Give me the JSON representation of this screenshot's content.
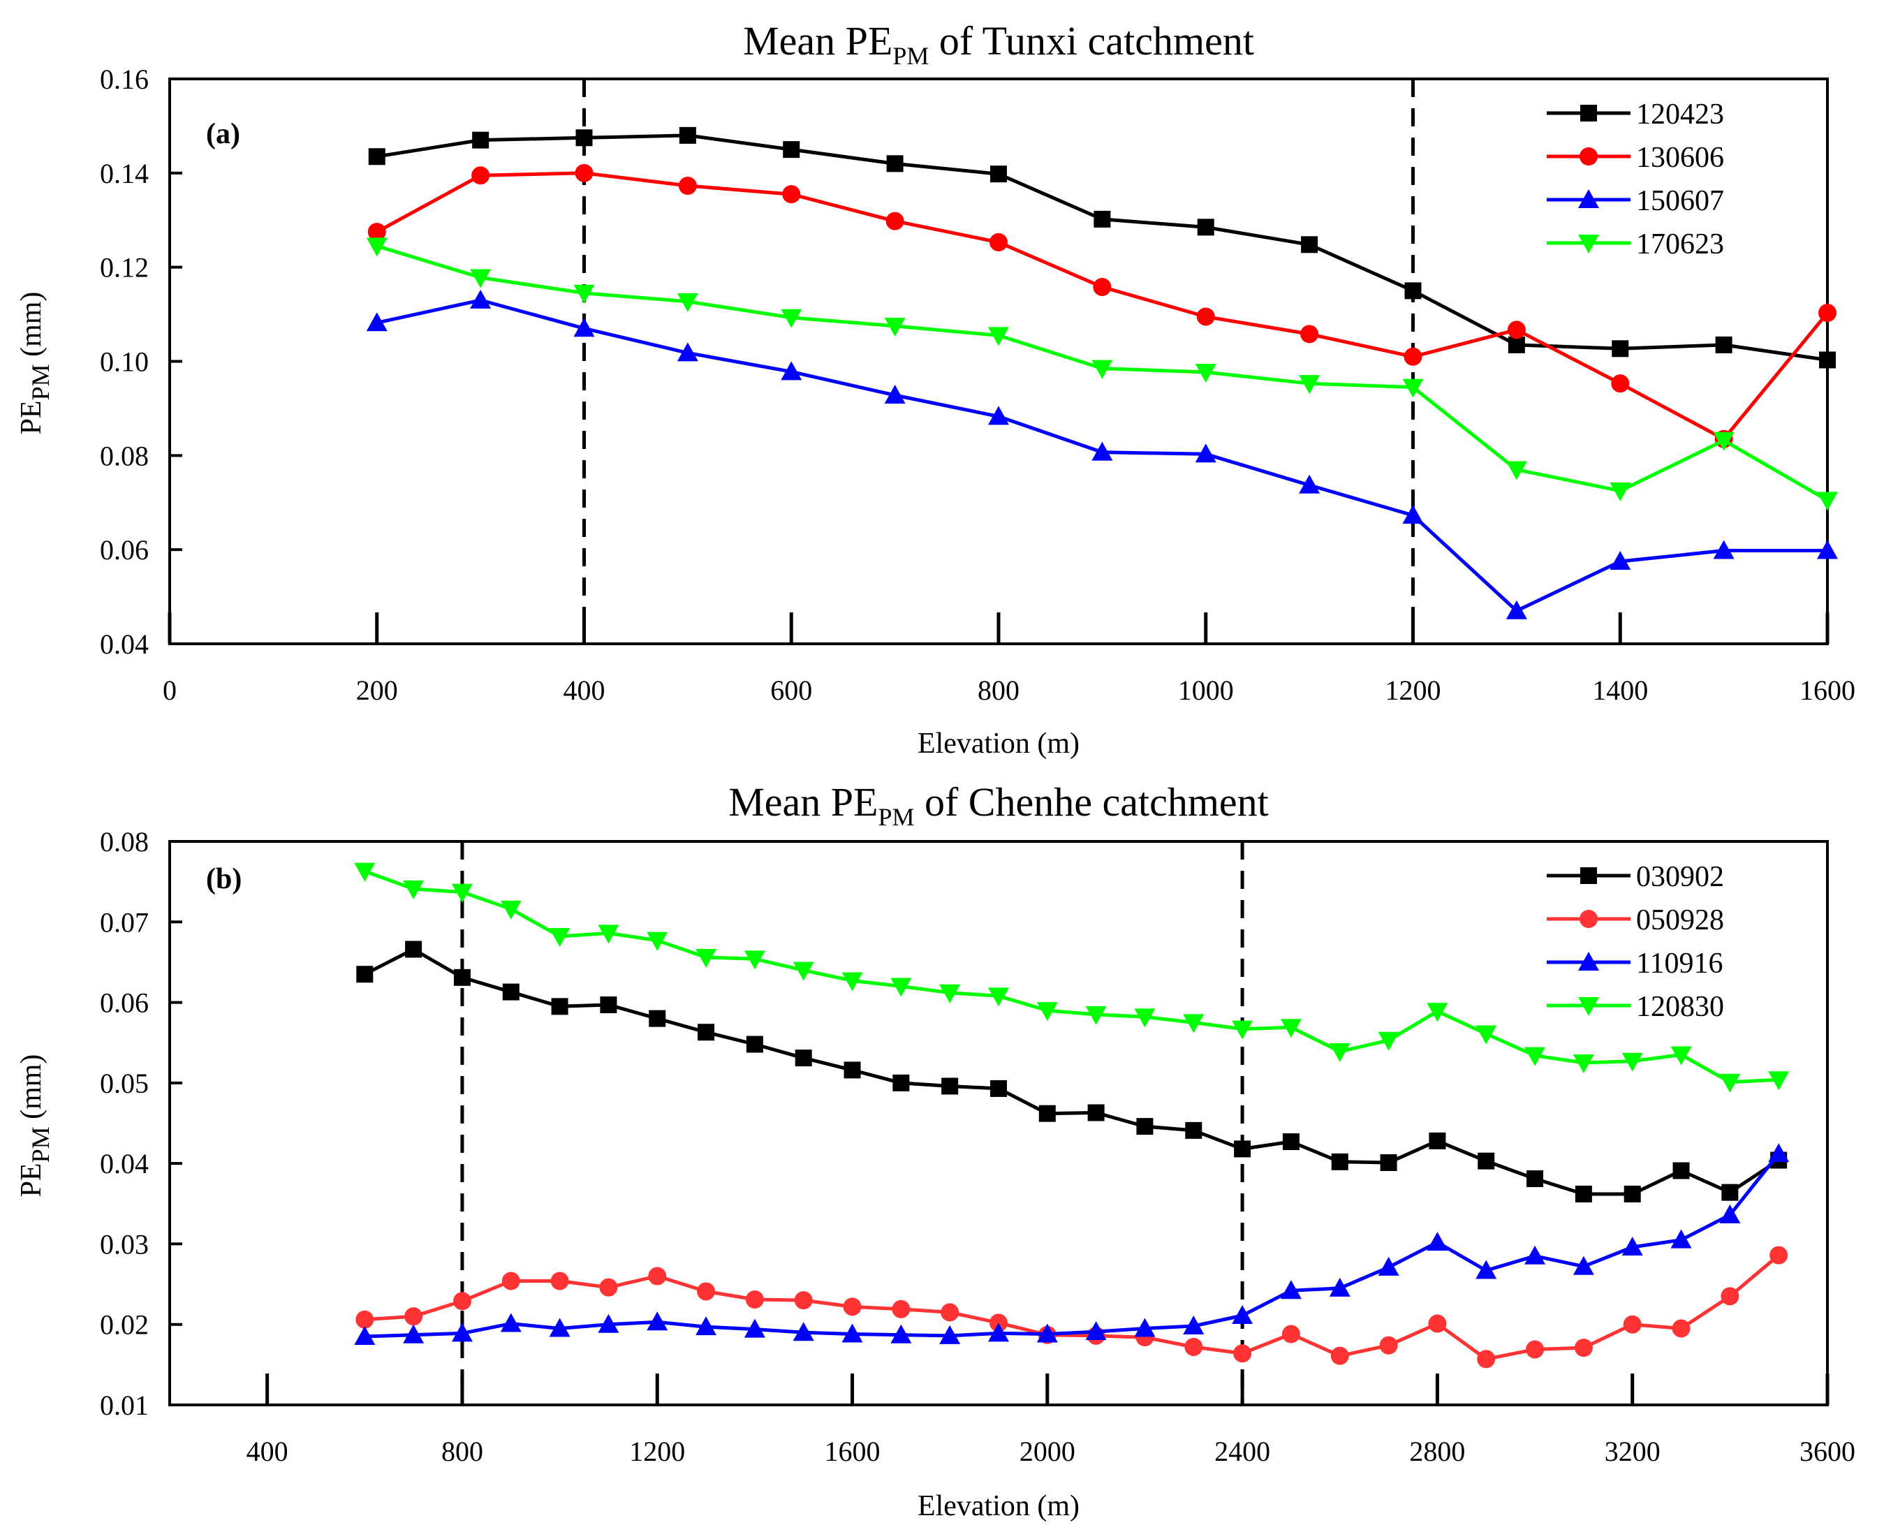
{
  "chart_data": [
    {
      "type": "line",
      "title_main": "Mean PE",
      "title_sub": "PM",
      "title_rest": " of Tunxi catchment",
      "panel_label": "(a)",
      "xlabel": "Elevation (m)",
      "ylabel_main": "PE",
      "ylabel_sub": "PM",
      "ylabel_rest": " (mm)",
      "xlim": [
        0,
        1600
      ],
      "ylim": [
        0.04,
        0.16
      ],
      "xticks": [
        0,
        200,
        400,
        600,
        800,
        1000,
        1200,
        1400,
        1600
      ],
      "yticks": [
        "0.04",
        "0.06",
        "0.08",
        "0.10",
        "0.12",
        "0.14",
        "0.16"
      ],
      "vlines": [
        400,
        1200
      ],
      "legend_position": "top-right",
      "x": [
        200,
        300,
        400,
        500,
        600,
        700,
        800,
        900,
        1000,
        1100,
        1200,
        1300,
        1400,
        1500,
        1600
      ],
      "series": [
        {
          "name": "120423",
          "color": "#000000",
          "marker": "square",
          "values": [
            0.1435,
            0.147,
            0.1475,
            0.148,
            0.145,
            0.142,
            0.1398,
            0.1302,
            0.1285,
            0.1248,
            0.115,
            0.1035,
            0.1027,
            0.1035,
            0.1003
          ]
        },
        {
          "name": "130606",
          "color": "#ff0000",
          "marker": "circle",
          "values": [
            0.1275,
            0.1395,
            0.14,
            0.1373,
            0.1355,
            0.1298,
            0.1253,
            0.1158,
            0.1095,
            0.1058,
            0.101,
            0.1067,
            0.0953,
            0.0835,
            0.1103
          ]
        },
        {
          "name": "150607",
          "color": "#0000ff",
          "marker": "triangle-up",
          "values": [
            0.1082,
            0.113,
            0.107,
            0.1018,
            0.0978,
            0.0928,
            0.0883,
            0.0807,
            0.0803,
            0.0737,
            0.0673,
            0.047,
            0.0575,
            0.0598,
            0.0598
          ]
        },
        {
          "name": "170623",
          "color": "#00ff00",
          "marker": "triangle-down",
          "values": [
            0.1245,
            0.1178,
            0.1145,
            0.1127,
            0.1093,
            0.1075,
            0.1055,
            0.0985,
            0.0977,
            0.0953,
            0.0945,
            0.077,
            0.0725,
            0.0832,
            0.0705
          ]
        }
      ]
    },
    {
      "type": "line",
      "title_main": "Mean PE",
      "title_sub": "PM",
      "title_rest": " of Chenhe catchment",
      "panel_label": "(b)",
      "xlabel": "Elevation (m)",
      "ylabel_main": "PE",
      "ylabel_sub": "PM",
      "ylabel_rest": " (mm)",
      "xlim": [
        200,
        3600
      ],
      "ylim": [
        0.01,
        0.08
      ],
      "xticks": [
        400,
        800,
        1200,
        1600,
        2000,
        2400,
        2800,
        3200,
        3600
      ],
      "yticks": [
        "0.01",
        "0.02",
        "0.03",
        "0.04",
        "0.05",
        "0.06",
        "0.07",
        "0.08"
      ],
      "vlines": [
        800,
        2400
      ],
      "legend_position": "top-right",
      "x": [
        600,
        700,
        800,
        900,
        1000,
        1100,
        1200,
        1300,
        1400,
        1500,
        1600,
        1700,
        1800,
        1900,
        2000,
        2100,
        2200,
        2300,
        2400,
        2500,
        2600,
        2700,
        2800,
        2900,
        3000,
        3100,
        3200,
        3300,
        3400,
        3500
      ],
      "series": [
        {
          "name": "030902",
          "color": "#000000",
          "marker": "square",
          "values": [
            0.0635,
            0.0666,
            0.0631,
            0.0613,
            0.0595,
            0.0597,
            0.058,
            0.0563,
            0.0548,
            0.0531,
            0.0516,
            0.05,
            0.0496,
            0.0493,
            0.0462,
            0.0463,
            0.0446,
            0.0441,
            0.0418,
            0.0427,
            0.0402,
            0.0401,
            0.0428,
            0.0403,
            0.0381,
            0.0362,
            0.0362,
            0.0391,
            0.0364,
            0.0404
          ]
        },
        {
          "name": "050928",
          "color": "#ff3333",
          "marker": "circle",
          "values": [
            0.0206,
            0.021,
            0.0229,
            0.0254,
            0.0254,
            0.0246,
            0.026,
            0.0241,
            0.0231,
            0.023,
            0.0222,
            0.0219,
            0.0215,
            0.0202,
            0.0187,
            0.0186,
            0.0184,
            0.0172,
            0.0164,
            0.0188,
            0.0161,
            0.0174,
            0.0201,
            0.0157,
            0.0169,
            0.0171,
            0.02,
            0.0195,
            0.0235,
            0.0286
          ]
        },
        {
          "name": "110916",
          "color": "#0000ff",
          "marker": "triangle-up",
          "values": [
            0.0185,
            0.0187,
            0.0189,
            0.0201,
            0.0195,
            0.02,
            0.0203,
            0.0197,
            0.0194,
            0.019,
            0.0188,
            0.0187,
            0.0186,
            0.0189,
            0.0188,
            0.0191,
            0.0195,
            0.0198,
            0.0211,
            0.0242,
            0.0245,
            0.0271,
            0.0302,
            0.0267,
            0.0285,
            0.0272,
            0.0296,
            0.0305,
            0.0336,
            0.0412
          ]
        },
        {
          "name": "120830",
          "color": "#00ff00",
          "marker": "triangle-down",
          "values": [
            0.0763,
            0.0741,
            0.0737,
            0.0716,
            0.0682,
            0.0686,
            0.0677,
            0.0656,
            0.0654,
            0.064,
            0.0627,
            0.062,
            0.0612,
            0.0608,
            0.059,
            0.0585,
            0.0582,
            0.0575,
            0.0567,
            0.0569,
            0.0539,
            0.0553,
            0.0589,
            0.0561,
            0.0534,
            0.0525,
            0.0527,
            0.0535,
            0.0501,
            0.0504
          ]
        }
      ]
    }
  ]
}
